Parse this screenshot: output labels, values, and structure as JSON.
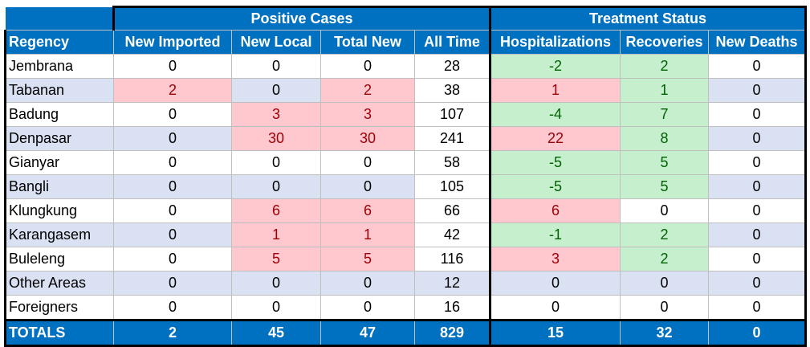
{
  "groups": {
    "positive": "Positive Cases",
    "treatment": "Treatment Status"
  },
  "headers": [
    "Regency",
    "New Imported",
    "New Local",
    "Total New",
    "All Time",
    "Hospitalizations",
    "Recoveries",
    "New Deaths"
  ],
  "rows": [
    {
      "name": "Jembrana",
      "imp": "0",
      "loc": "0",
      "tot": "0",
      "all": "28",
      "hosp": "-2",
      "rec": "2",
      "dth": "0"
    },
    {
      "name": "Tabanan",
      "imp": "2",
      "loc": "0",
      "tot": "2",
      "all": "38",
      "hosp": "1",
      "rec": "1",
      "dth": "0"
    },
    {
      "name": "Badung",
      "imp": "0",
      "loc": "3",
      "tot": "3",
      "all": "107",
      "hosp": "-4",
      "rec": "7",
      "dth": "0"
    },
    {
      "name": "Denpasar",
      "imp": "0",
      "loc": "30",
      "tot": "30",
      "all": "241",
      "hosp": "22",
      "rec": "8",
      "dth": "0"
    },
    {
      "name": "Gianyar",
      "imp": "0",
      "loc": "0",
      "tot": "0",
      "all": "58",
      "hosp": "-5",
      "rec": "5",
      "dth": "0"
    },
    {
      "name": "Bangli",
      "imp": "0",
      "loc": "0",
      "tot": "0",
      "all": "105",
      "hosp": "-5",
      "rec": "5",
      "dth": "0"
    },
    {
      "name": "Klungkung",
      "imp": "0",
      "loc": "6",
      "tot": "6",
      "all": "66",
      "hosp": "6",
      "rec": "0",
      "dth": "0"
    },
    {
      "name": "Karangasem",
      "imp": "0",
      "loc": "1",
      "tot": "1",
      "all": "42",
      "hosp": "-1",
      "rec": "2",
      "dth": "0"
    },
    {
      "name": "Buleleng",
      "imp": "0",
      "loc": "5",
      "tot": "5",
      "all": "116",
      "hosp": "3",
      "rec": "2",
      "dth": "0"
    },
    {
      "name": "Other Areas",
      "imp": "0",
      "loc": "0",
      "tot": "0",
      "all": "12",
      "hosp": "0",
      "rec": "0",
      "dth": "0"
    },
    {
      "name": "Foreigners",
      "imp": "0",
      "loc": "0",
      "tot": "0",
      "all": "16",
      "hosp": "0",
      "rec": "0",
      "dth": "0"
    }
  ],
  "totals": {
    "label": "TOTALS",
    "imp": "2",
    "loc": "45",
    "tot": "47",
    "all": "829",
    "hosp": "15",
    "rec": "32",
    "dth": "0"
  }
}
